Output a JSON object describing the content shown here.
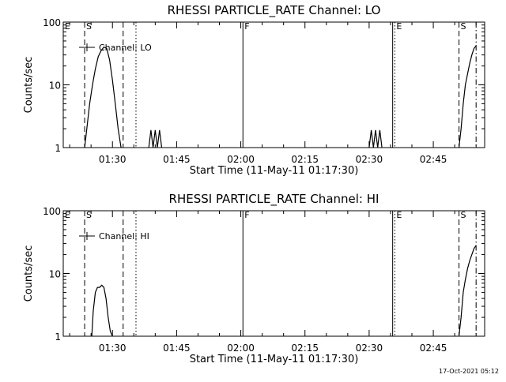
{
  "footer": {
    "timestamp": "17-Oct-2021 05:12"
  },
  "chart_data": [
    {
      "type": "line",
      "title": "RHESSI PARTICLE_RATE Channel: LO",
      "xlabel": "Start Time (11-May-11 01:17:30)",
      "ylabel": "Counts/sec",
      "yscale": "log",
      "ylim": [
        1,
        100
      ],
      "xlim": [
        "01:18:30",
        "02:57:00"
      ],
      "yticks": [
        1,
        10,
        100
      ],
      "yticklabels": [
        "1",
        "10",
        "100"
      ],
      "xticks": [
        "01:30",
        "01:45",
        "02:00",
        "02:15",
        "02:30",
        "02:45"
      ],
      "legend": {
        "label": "Channel: LO",
        "position": "top-left"
      },
      "series": [
        {
          "name": "Channel: LO",
          "color": "#000000",
          "segments": [
            {
              "x": [
                "01:23:30",
                "01:24:00",
                "01:24:40",
                "01:25:20",
                "01:26:00",
                "01:26:40",
                "01:27:20",
                "01:28:00",
                "01:28:40",
                "01:29:20",
                "01:30:00",
                "01:30:40",
                "01:31:20",
                "01:32:00"
              ],
              "y": [
                1,
                2,
                5,
                10,
                18,
                28,
                35,
                40,
                38,
                25,
                12,
                5,
                2,
                1
              ]
            },
            {
              "x": [
                "01:38:30",
                "01:39:00",
                "01:39:30",
                "01:40:00",
                "01:40:30",
                "01:41:00",
                "01:41:30"
              ],
              "y": [
                1,
                1.9,
                1,
                1.9,
                1,
                1.9,
                1
              ]
            },
            {
              "x": [
                "02:30:00",
                "02:30:30",
                "02:31:00",
                "02:31:30",
                "02:32:00",
                "02:32:30",
                "02:33:00"
              ],
              "y": [
                1,
                1.9,
                1,
                1.9,
                1,
                1.9,
                1
              ]
            },
            {
              "x": [
                "02:51:00",
                "02:51:30",
                "02:52:00",
                "02:52:30",
                "02:53:00",
                "02:53:30",
                "02:54:00",
                "02:54:30",
                "02:55:00"
              ],
              "y": [
                1,
                2,
                5,
                10,
                15,
                22,
                30,
                38,
                42
              ]
            }
          ]
        }
      ],
      "markers": [
        {
          "label": "E",
          "time": "01:18:30",
          "style": "solid"
        },
        {
          "label": "S",
          "time": "01:23:30",
          "style": "dashed"
        },
        {
          "label": "",
          "time": "01:32:30",
          "style": "dashed"
        },
        {
          "label": "",
          "time": "01:35:30",
          "style": "dotted"
        },
        {
          "label": "F",
          "time": "02:00:30",
          "style": "solid"
        },
        {
          "label": "",
          "time": "02:35:30",
          "style": "solid"
        },
        {
          "label": "E",
          "time": "02:36:00",
          "style": "dotted"
        },
        {
          "label": "S",
          "time": "02:51:00",
          "style": "dashed"
        },
        {
          "label": "",
          "time": "02:55:00",
          "style": "dashdot"
        }
      ]
    },
    {
      "type": "line",
      "title": "RHESSI PARTICLE_RATE Channel: HI",
      "xlabel": "Start Time (11-May-11 01:17:30)",
      "ylabel": "Counts/sec",
      "yscale": "log",
      "ylim": [
        1,
        100
      ],
      "xlim": [
        "01:18:30",
        "02:57:00"
      ],
      "yticks": [
        1,
        10,
        100
      ],
      "yticklabels": [
        "1",
        "10",
        "100"
      ],
      "xticks": [
        "01:30",
        "01:45",
        "02:00",
        "02:15",
        "02:30",
        "02:45"
      ],
      "legend": {
        "label": "Channel: HI",
        "position": "top-left"
      },
      "series": [
        {
          "name": "Channel: HI",
          "color": "#000000",
          "segments": [
            {
              "x": [
                "01:25:10",
                "01:25:30",
                "01:26:00",
                "01:26:30",
                "01:27:00",
                "01:27:30",
                "01:28:00",
                "01:28:30",
                "01:29:00",
                "01:29:30",
                "01:30:00"
              ],
              "y": [
                1,
                2.5,
                5,
                6,
                6,
                6.5,
                6,
                4,
                2,
                1.2,
                1
              ]
            },
            {
              "x": [
                "02:51:00",
                "02:51:30",
                "02:52:00",
                "02:52:30",
                "02:53:00",
                "02:53:30",
                "02:54:00",
                "02:54:30",
                "02:55:00"
              ],
              "y": [
                1,
                2,
                5,
                8,
                12,
                16,
                20,
                25,
                28
              ]
            }
          ]
        }
      ],
      "markers": [
        {
          "label": "E",
          "time": "01:18:30",
          "style": "solid"
        },
        {
          "label": "S",
          "time": "01:23:30",
          "style": "dashed"
        },
        {
          "label": "",
          "time": "01:32:30",
          "style": "dashed"
        },
        {
          "label": "",
          "time": "01:35:30",
          "style": "dotted"
        },
        {
          "label": "F",
          "time": "02:00:30",
          "style": "solid"
        },
        {
          "label": "",
          "time": "02:35:30",
          "style": "solid"
        },
        {
          "label": "E",
          "time": "02:36:00",
          "style": "dotted"
        },
        {
          "label": "S",
          "time": "02:51:00",
          "style": "dashed"
        },
        {
          "label": "",
          "time": "02:55:00",
          "style": "dashdot"
        }
      ]
    }
  ]
}
